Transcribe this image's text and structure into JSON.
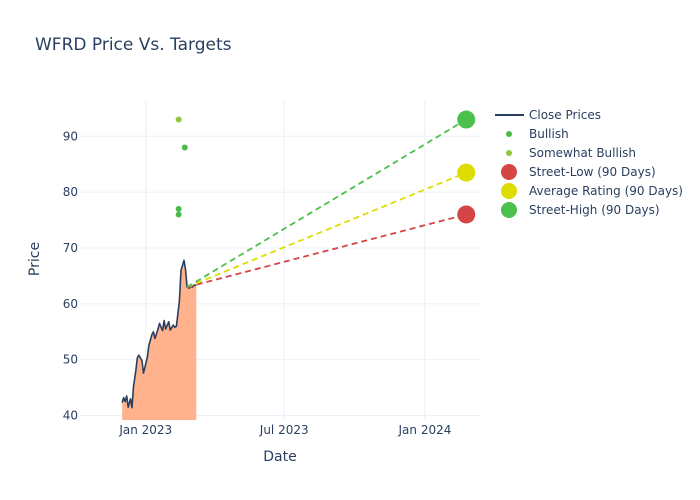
{
  "chart_data": {
    "type": "line",
    "title": "WFRD Price Vs. Targets",
    "xlabel": "Date",
    "ylabel": "Price",
    "x_range": [
      "2022-10-07",
      "2024-03-13"
    ],
    "y_range": [
      39.2,
      96.5
    ],
    "x_ticks": [
      {
        "value": "2023-01-01",
        "label": "Jan 2023"
      },
      {
        "value": "2023-07-01",
        "label": "Jul 2023"
      },
      {
        "value": "2024-01-01",
        "label": "Jan 2024"
      }
    ],
    "y_ticks": [
      40,
      50,
      60,
      70,
      80,
      90
    ],
    "grid": true,
    "legend_position": "right",
    "colors": {
      "close": "#2a3f5f",
      "fill": "#ffb28c",
      "bullish": "#4cbb4c",
      "somewhat_bullish": "#8fc93a",
      "street_low": "#d64545",
      "average": "#dddd00",
      "street_high": "#4cc04c",
      "grid": "#ebf0f8",
      "text": "#2a3f5f"
    },
    "close_prices": {
      "x": [
        "2022-12-01",
        "2022-12-03",
        "2022-12-05",
        "2022-12-07",
        "2022-12-09",
        "2022-12-12",
        "2022-12-14",
        "2022-12-16",
        "2022-12-19",
        "2022-12-21",
        "2022-12-23",
        "2022-12-27",
        "2022-12-29",
        "2023-01-03",
        "2023-01-05",
        "2023-01-09",
        "2023-01-11",
        "2023-01-13",
        "2023-01-17",
        "2023-01-19",
        "2023-01-23",
        "2023-01-25",
        "2023-01-27",
        "2023-01-31",
        "2023-02-02",
        "2023-02-06",
        "2023-02-08",
        "2023-02-10",
        "2023-02-14",
        "2023-02-16",
        "2023-02-20",
        "2023-02-22",
        "2023-02-24",
        "2023-02-27",
        "2023-03-01",
        "2023-03-03",
        "2023-03-06",
        "2023-03-08"
      ],
      "y": [
        42.3,
        43.2,
        42.5,
        43.5,
        41.5,
        43.0,
        41.4,
        45.2,
        48.0,
        50.4,
        50.8,
        49.8,
        47.6,
        50.4,
        52.5,
        54.5,
        55.0,
        53.8,
        55.5,
        56.5,
        55.2,
        57.0,
        55.5,
        56.8,
        55.3,
        56.2,
        55.8,
        56.0,
        60.5,
        66.0,
        67.8,
        66.2,
        63.0,
        62.8,
        63.2,
        63.0,
        63.4,
        63.3
      ]
    },
    "bullish": {
      "name": "Bullish",
      "points": [
        {
          "x": "2023-02-13",
          "y": 77.0
        },
        {
          "x": "2023-02-13",
          "y": 76.0
        },
        {
          "x": "2023-02-21",
          "y": 88.0
        }
      ]
    },
    "somewhat_bullish": {
      "name": "Somewhat Bullish",
      "points": [
        {
          "x": "2023-02-13",
          "y": 93.0
        }
      ]
    },
    "targets": {
      "start": {
        "x": "2023-02-24",
        "y": 63.0
      },
      "target_date": "2024-02-24",
      "street_low": {
        "name": "Street-Low (90 Days)",
        "y": 76.0
      },
      "average": {
        "name": "Average Rating (90 Days)",
        "y": 83.5
      },
      "street_high": {
        "name": "Street-High (90 Days)",
        "y": 93.0
      }
    },
    "legend": [
      "Close Prices",
      "Bullish",
      "Somewhat Bullish",
      "Street-Low (90 Days)",
      "Average Rating (90 Days)",
      "Street-High (90 Days)"
    ]
  }
}
